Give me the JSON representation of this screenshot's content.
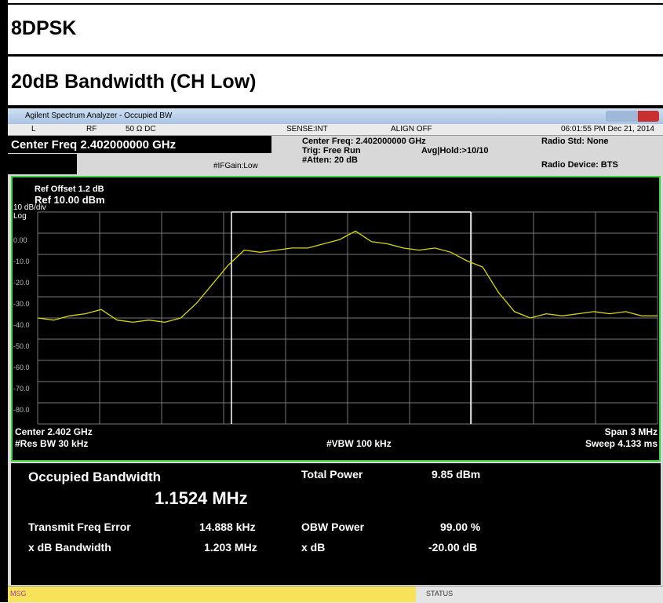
{
  "header": {
    "row1": "8DPSK",
    "row2": "20dB Bandwidth (CH Low)"
  },
  "window": {
    "title": "Agilent Spectrum Analyzer - Occupied BW"
  },
  "status_bar": {
    "mode": "L",
    "rf": "RF",
    "impedance": "50 Ω  DC",
    "sense": "SENSE:INT",
    "align": "ALIGN OFF",
    "datetime": "06:01:55 PM Dec 21, 2014"
  },
  "settings": {
    "center_freq": "Center Freq 2.402000000 GHz",
    "ifgain": "#IFGain:Low",
    "center_freq2": "Center Freq: 2.402000000 GHz",
    "trig": "Trig: Free Run",
    "atten": "#Atten: 20 dB",
    "avg": "Avg|Hold:>10/10",
    "radio_std": "Radio Std: None",
    "radio_device": "Radio Device: BTS"
  },
  "plot": {
    "ref_offset": "Ref Offset 1.2 dB",
    "ref_level": "Ref 10.00 dBm",
    "scale": "10 dB/div",
    "log": "Log",
    "center": "Center  2.402 GHz",
    "res_bw": "#Res BW  30 kHz",
    "vbw": "#VBW  100 kHz",
    "span": "Span 3 MHz",
    "sweep": "Sweep  4.133 ms"
  },
  "chart_data": {
    "type": "line",
    "color": "#d8d800",
    "ylim": [
      -90,
      10
    ],
    "yticks": [
      {
        "value": 0,
        "label": "0.00"
      },
      {
        "value": -10,
        "label": "-10.0"
      },
      {
        "value": -20,
        "label": "-20.0"
      },
      {
        "value": -30,
        "label": "-30.0"
      },
      {
        "value": -40,
        "label": "-40.0"
      },
      {
        "value": -50,
        "label": "-50.0"
      },
      {
        "value": -60,
        "label": "-60.0"
      },
      {
        "value": -70,
        "label": "-70.0"
      },
      {
        "value": -80,
        "label": "-80.0"
      }
    ],
    "values": [
      -40,
      -41,
      -39,
      -38,
      -36,
      -41,
      -42,
      -41,
      -42,
      -40,
      -33,
      -24,
      -15,
      -8,
      -9,
      -8,
      -7,
      -7,
      -5,
      -3,
      1,
      -4,
      -5,
      -7,
      -8,
      -7,
      -9,
      -13,
      -16,
      -28,
      -37,
      -40,
      -38,
      -39,
      -38,
      -37,
      -38,
      -37,
      -39,
      -39
    ]
  },
  "results": {
    "obw_label": "Occupied Bandwidth",
    "obw_value": "1.1524 MHz",
    "tfe_label": "Transmit Freq Error",
    "tfe_value": "14.888 kHz",
    "xdbbw_label": "x dB Bandwidth",
    "xdbbw_value": "1.203 MHz",
    "tp_label": "Total Power",
    "tp_value": "9.85 dBm",
    "obwp_label": "OBW Power",
    "obwp_value": "99.00 %",
    "xdb_label": "x dB",
    "xdb_value": "-20.00 dB"
  },
  "footer": {
    "msg": "MSG",
    "status": "STATUS"
  }
}
